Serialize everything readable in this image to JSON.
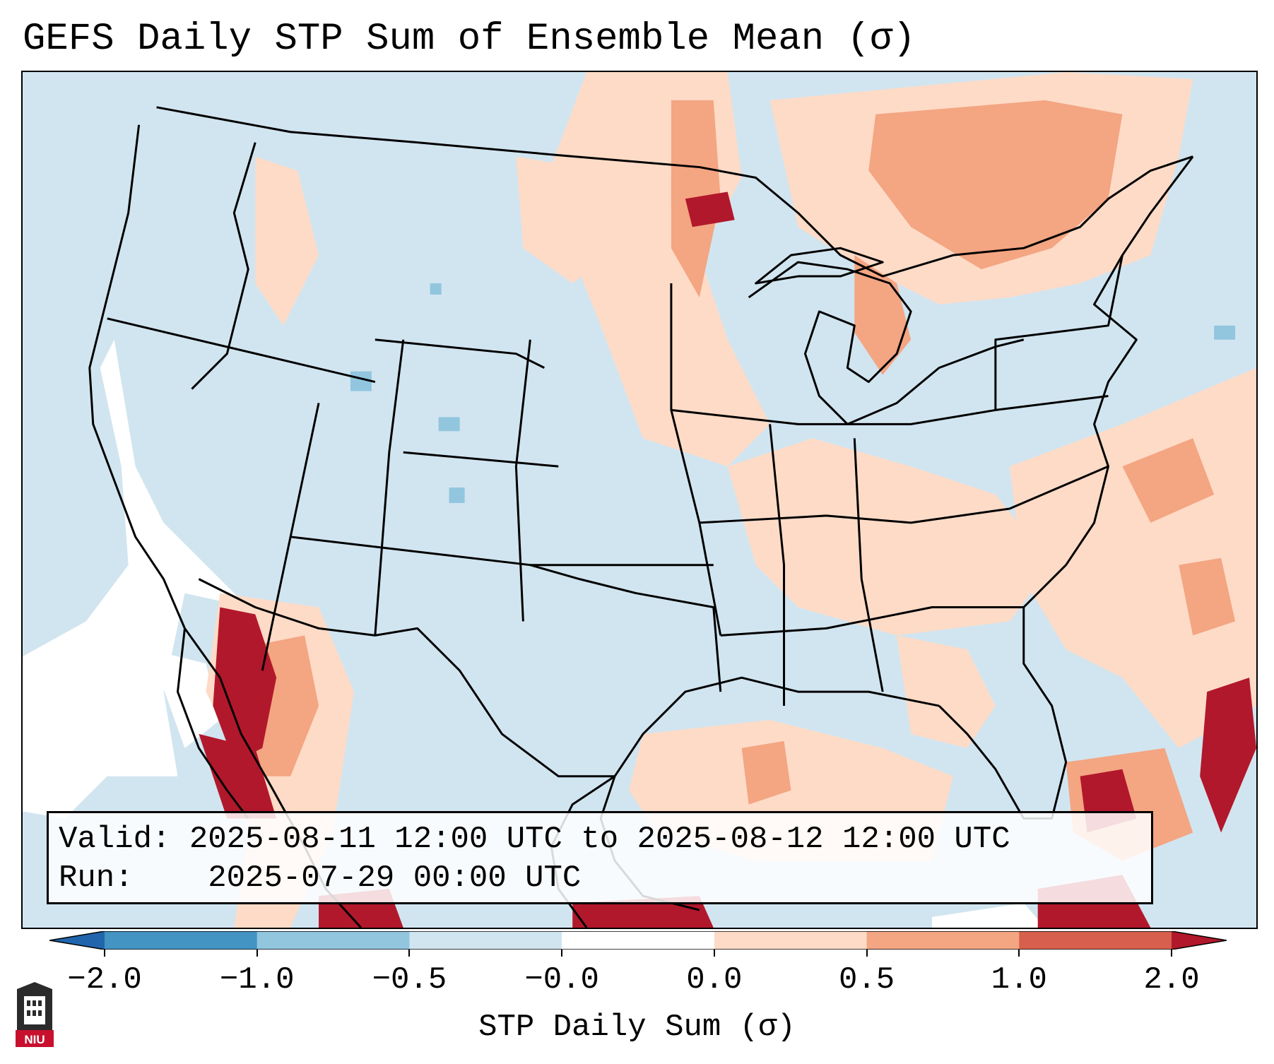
{
  "title": "GEFS Daily STP Sum of Ensemble Mean (σ)",
  "info": {
    "valid_label": "Valid:",
    "valid_value": "2025-08-11 12:00 UTC to 2025-08-12 12:00 UTC",
    "run_label": "Run:",
    "run_value": "2025-07-29 00:00 UTC"
  },
  "colorbar": {
    "label": "STP Daily Sum (σ)",
    "ticks": [
      "−2.0",
      "−1.0",
      "−0.5",
      "−0.0",
      "0.0",
      "0.5",
      "1.0",
      "2.0"
    ],
    "bins": [
      {
        "color": "#2166ac",
        "from": "<-2.0"
      },
      {
        "color": "#4393c3",
        "from": "-2.0",
        "to": "-1.0"
      },
      {
        "color": "#92c5de",
        "from": "-1.0",
        "to": "-0.5"
      },
      {
        "color": "#d1e5f0",
        "from": "-0.5",
        "to": "-0.0"
      },
      {
        "color": "#ffffff",
        "from": "-0.0",
        "to": "0.0"
      },
      {
        "color": "#fddbc7",
        "from": "0.0",
        "to": "0.5"
      },
      {
        "color": "#f4a582",
        "from": "0.5",
        "to": "1.0"
      },
      {
        "color": "#d6604d",
        "from": "1.0",
        "to": "2.0"
      },
      {
        "color": "#b2182b",
        "from": ">2.0"
      }
    ]
  },
  "logo": {
    "text": "NIU",
    "name": "niu-logo-icon",
    "color": "#c8102e"
  },
  "colors": {
    "background": "#d1e5f0",
    "boundaries": "#000000"
  }
}
